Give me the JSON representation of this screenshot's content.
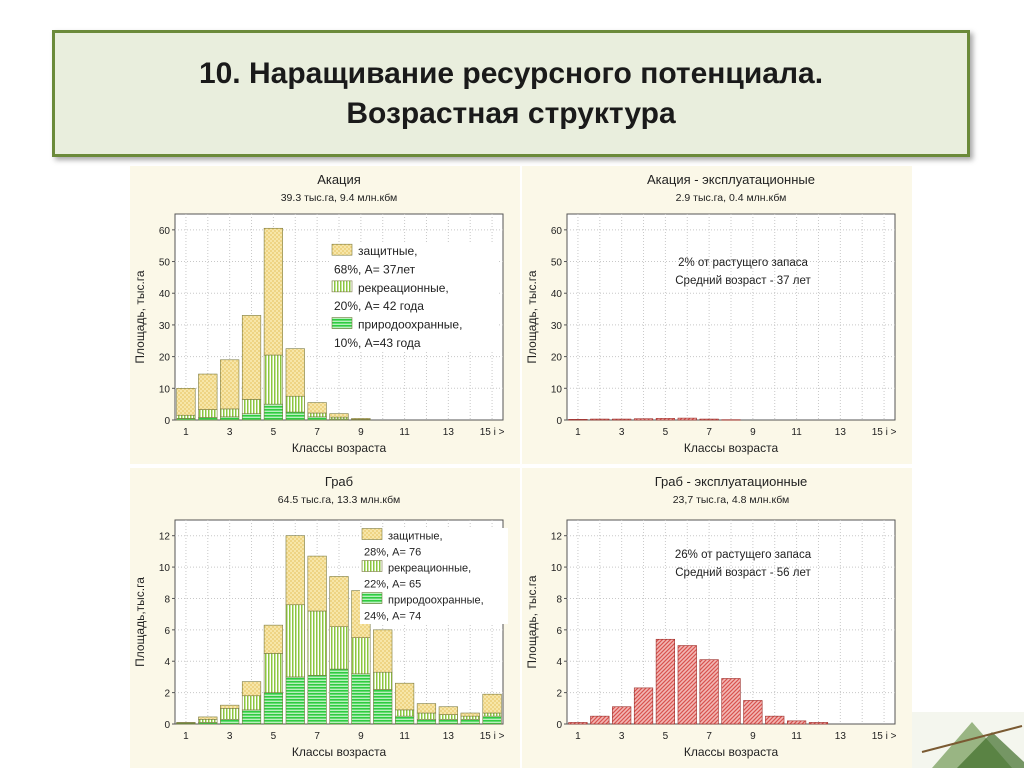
{
  "slide": {
    "title_line1": "10. Наращивание ресурсного потенциала.",
    "title_line2": "Возрастная структура"
  },
  "colors": {
    "panel_bg": "#fbf8e8",
    "protective": "#e8c86a",
    "recreational": "#8cc63f",
    "nature": "#2ecc40",
    "exploit": "#d9534f",
    "title_border": "#6b8a3a",
    "title_bg": "#e9eedd"
  },
  "chart_data": [
    {
      "id": "acacia",
      "type": "bar",
      "stacked": true,
      "title": "Акация",
      "subtitle": "39.3 тыс.га, 9.4 млн.кбм",
      "xlabel": "Классы возраста",
      "ylabel": "Площадь, тыс.га",
      "ylim": [
        0,
        65
      ],
      "yticks": [
        0,
        10,
        20,
        30,
        40,
        50,
        60
      ],
      "categories": [
        "1",
        "2",
        "3",
        "4",
        "5",
        "6",
        "7",
        "8",
        "9",
        "10",
        "11",
        "12",
        "13",
        "14",
        "15 i >"
      ],
      "xtick_labels": [
        "1",
        "3",
        "5",
        "7",
        "9",
        "11",
        "13",
        "15 i >"
      ],
      "grid": true,
      "legend_position": "top-right",
      "legend": [
        "защитные,",
        "68%, А= 37лет",
        "рекреационные,",
        "20%, А= 42 года",
        "природоохранные,",
        "10%, А=43 года"
      ],
      "series": [
        {
          "name": "природоохранные",
          "values": [
            0.5,
            0.8,
            1.0,
            2.0,
            5.0,
            2.5,
            1.0,
            0.3,
            0,
            0,
            0,
            0,
            0,
            0,
            0
          ]
        },
        {
          "name": "рекреационные",
          "values": [
            1.0,
            2.5,
            2.5,
            4.5,
            15.5,
            5.0,
            1.2,
            0.6,
            0.2,
            0,
            0,
            0,
            0,
            0,
            0
          ]
        },
        {
          "name": "защитные",
          "values": [
            8.5,
            11.2,
            15.5,
            26.5,
            40.0,
            15.0,
            3.3,
            1.1,
            0.3,
            0,
            0,
            0,
            0,
            0,
            0
          ]
        }
      ]
    },
    {
      "id": "acacia-exploit",
      "type": "bar",
      "stacked": false,
      "title": "Акация - эксплуатационные",
      "subtitle": "2.9 тыс.га, 0.4 млн.кбм",
      "xlabel": "Классы возраста",
      "ylabel": "Площадь, тыс.га",
      "ylim": [
        0,
        65
      ],
      "yticks": [
        0,
        10,
        20,
        30,
        40,
        50,
        60
      ],
      "categories": [
        "1",
        "2",
        "3",
        "4",
        "5",
        "6",
        "7",
        "8",
        "9",
        "10",
        "11",
        "12",
        "13",
        "14",
        "15 i >"
      ],
      "xtick_labels": [
        "1",
        "3",
        "5",
        "7",
        "9",
        "11",
        "13",
        "15 i >"
      ],
      "grid": true,
      "annotation": [
        "2% от растущего запаса",
        "Средний возраст - 37 лет"
      ],
      "series": [
        {
          "name": "",
          "values": [
            0.2,
            0.3,
            0.3,
            0.4,
            0.5,
            0.6,
            0.3,
            0.1,
            0,
            0,
            0,
            0,
            0,
            0,
            0
          ]
        }
      ]
    },
    {
      "id": "hornbeam",
      "type": "bar",
      "stacked": true,
      "title": "Граб",
      "subtitle": "64.5 тыс.га, 13.3 млн.кбм",
      "xlabel": "Классы возраста",
      "ylabel": "Площадь,тыс.га",
      "ylim": [
        0,
        13
      ],
      "yticks": [
        0,
        2,
        4,
        6,
        8,
        10,
        12
      ],
      "categories": [
        "1",
        "2",
        "3",
        "4",
        "5",
        "6",
        "7",
        "8",
        "9",
        "10",
        "11",
        "12",
        "13",
        "14",
        "15 i >"
      ],
      "xtick_labels": [
        "1",
        "3",
        "5",
        "7",
        "9",
        "11",
        "13",
        "15 i >"
      ],
      "grid": true,
      "legend_position": "top-right",
      "legend": [
        "защитные,",
        "28%, А= 76",
        "рекреационные,",
        "22%, А= 65",
        "природоохранные,",
        "24%, А= 74"
      ],
      "series": [
        {
          "name": "природоохранные",
          "values": [
            0.05,
            0.1,
            0.3,
            0.9,
            2.0,
            3.0,
            3.1,
            3.5,
            3.2,
            2.2,
            0.5,
            0.3,
            0.3,
            0.3,
            0.5
          ]
        },
        {
          "name": "рекреационные",
          "values": [
            0.03,
            0.2,
            0.7,
            0.9,
            2.5,
            4.6,
            4.1,
            2.7,
            2.3,
            1.1,
            0.4,
            0.4,
            0.3,
            0.2,
            0.2
          ]
        },
        {
          "name": "защитные",
          "values": [
            0.02,
            0.15,
            0.2,
            0.9,
            1.8,
            4.4,
            3.5,
            3.2,
            3.0,
            2.7,
            1.7,
            0.6,
            0.5,
            0.2,
            1.2
          ]
        }
      ]
    },
    {
      "id": "hornbeam-exploit",
      "type": "bar",
      "stacked": false,
      "title": "Граб - эксплуатационные",
      "subtitle": "23,7 тыс.га,  4.8 млн.кбм",
      "xlabel": "Классы возраста",
      "ylabel": "Площадь, тыс.га",
      "ylim": [
        0,
        13
      ],
      "yticks": [
        0,
        2,
        4,
        6,
        8,
        10,
        12
      ],
      "categories": [
        "1",
        "2",
        "3",
        "4",
        "5",
        "6",
        "7",
        "8",
        "9",
        "10",
        "11",
        "12",
        "13",
        "14",
        "15 i >"
      ],
      "xtick_labels": [
        "1",
        "3",
        "5",
        "7",
        "9",
        "11",
        "13",
        "15 i >"
      ],
      "grid": true,
      "annotation": [
        "26% от растущего запаса",
        "Средний возраст - 56 лет"
      ],
      "series": [
        {
          "name": "",
          "values": [
            0.1,
            0.5,
            1.1,
            2.3,
            5.4,
            5.0,
            4.1,
            2.9,
            1.5,
            0.5,
            0.2,
            0.1,
            0,
            0,
            0
          ]
        }
      ]
    }
  ]
}
